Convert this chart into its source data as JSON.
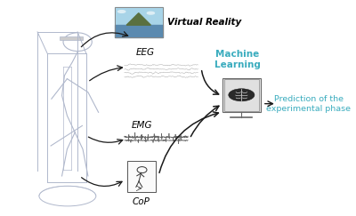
{
  "bg_color": "#ffffff",
  "fig_width": 4.0,
  "fig_height": 2.43,
  "dpi": 100,
  "labels": {
    "vr": "Virtual Reality",
    "eeg": "EEG",
    "emg": "EMG",
    "cop": "CoP",
    "ml": "Machine\nLearning",
    "pred": "Prediction of the\nexperimental phase"
  },
  "label_colors": {
    "vr": "#000000",
    "eeg": "#000000",
    "emg": "#000000",
    "cop": "#000000",
    "ml": "#3aacbe",
    "pred": "#3aacbe"
  },
  "arrow_color": "#1a1a1a",
  "cage_color": "#b0b8cc",
  "person_color": "#b0b8cc",
  "signal_color": "#999999",
  "emg_color": "#555555",
  "box_edge_color": "#555555",
  "monitor_face": "#f5f5f5",
  "brain_color": "#333333"
}
